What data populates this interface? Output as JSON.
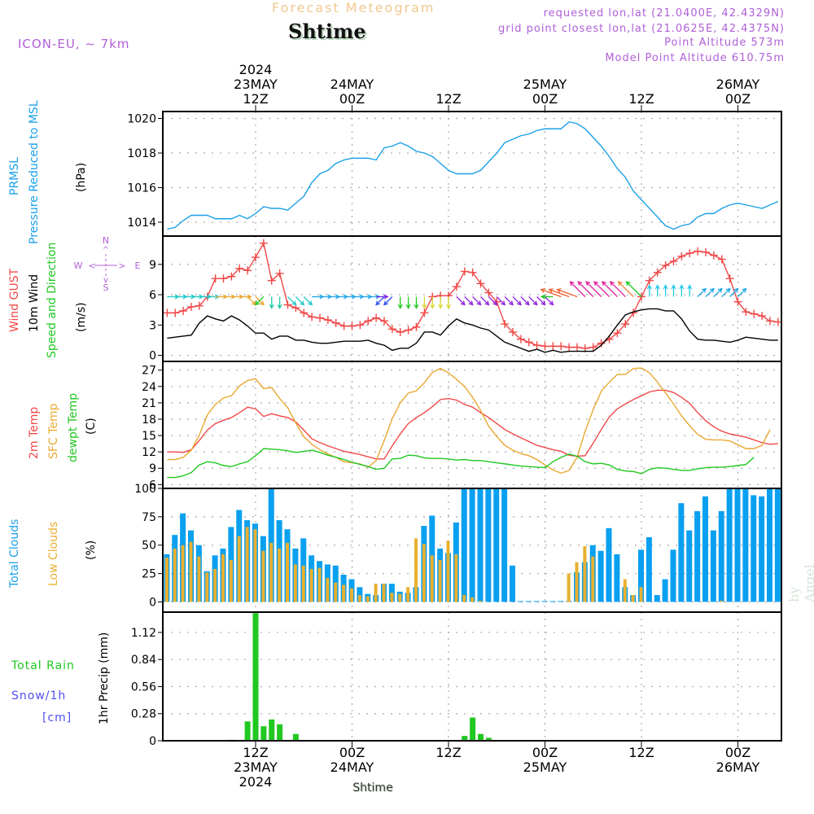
{
  "header": {
    "title": "Forecast Meteogram",
    "station": "Shtime",
    "model": "ICON-EU, ~ 7km",
    "requested": "requested lon,lat (21.0400E, 42.4329N)",
    "gridpoint": "grid point closest lon,lat (21.0625E, 42.4375N)",
    "point_alt": "Point Altitude 573m",
    "model_alt": "Model Point Altitude 610.75m"
  },
  "watermark": "by Angel",
  "footer_station": "Shtime",
  "colors": {
    "pressure": "#1aa0e8",
    "gust": "#f04848",
    "wind10m": "#000000",
    "t2m": "#f04848",
    "tsfc": "#e8a830",
    "dewpt": "#20c820",
    "total_clouds": "#0aa0f0",
    "low_clouds": "#e8b030",
    "rain": "#20c820",
    "snow": "#5050f0",
    "annot": "#b060d8"
  },
  "panel_labels": {
    "pressure": [
      "PRMSL",
      "Pressure Reduced to MSL",
      "(hPa)"
    ],
    "wind": [
      "Wind GUST",
      "10m Wind",
      "Speed and Direction",
      "(m/s)"
    ],
    "compass": {
      "n": "N",
      "s": "S",
      "w": "W",
      "e": "E"
    },
    "temp": [
      "2m Temp",
      "SFC Temp",
      "dewpt Temp",
      "(C)"
    ],
    "clouds": [
      "Total Clouds",
      "Low Clouds",
      "(%)"
    ],
    "precip": [
      "Total  Rain",
      "Snow/1h",
      "[cm]",
      "1hr Precip (mm)"
    ]
  },
  "chart_data": [
    {
      "type": "line",
      "title": "PRMSL Pressure Reduced to MSL",
      "ylabel": "(hPa)",
      "ylim": [
        1013.2,
        1020.4
      ],
      "yticks": [
        1014,
        1016,
        1018,
        1020
      ],
      "x_start": "23MAY 01Z",
      "x_step_hours": 1,
      "series": [
        {
          "name": "PRMSL",
          "values": [
            1013.6,
            1013.7,
            1014.1,
            1014.4,
            1014.4,
            1014.4,
            1014.2,
            1014.2,
            1014.2,
            1014.4,
            1014.2,
            1014.5,
            1014.9,
            1014.8,
            1014.8,
            1014.7,
            1015.1,
            1015.5,
            1016.3,
            1016.8,
            1017.0,
            1017.4,
            1017.6,
            1017.7,
            1017.7,
            1017.7,
            1017.6,
            1018.3,
            1018.4,
            1018.6,
            1018.4,
            1018.1,
            1018.0,
            1017.8,
            1017.4,
            1017.0,
            1016.8,
            1016.8,
            1016.8,
            1017.0,
            1017.5,
            1018.0,
            1018.6,
            1018.8,
            1019.0,
            1019.1,
            1019.3,
            1019.4,
            1019.4,
            1019.4,
            1019.8,
            1019.7,
            1019.4,
            1018.9,
            1018.4,
            1017.8,
            1017.1,
            1016.6,
            1015.8,
            1015.3,
            1014.8,
            1014.3,
            1013.8,
            1013.6,
            1013.8,
            1013.9,
            1014.3,
            1014.5,
            1014.5,
            1014.8,
            1015.0,
            1015.1,
            1015.0,
            1014.9,
            1014.8,
            1015.0,
            1015.2
          ]
        }
      ]
    },
    {
      "type": "line",
      "title": "Wind GUST / 10m Wind Speed and Direction",
      "ylabel": "(m/s)",
      "ylim": [
        -0.6,
        11.8
      ],
      "yticks": [
        0,
        3,
        6,
        9
      ],
      "x_start": "23MAY 01Z",
      "x_step_hours": 1,
      "series": [
        {
          "name": "Wind GUST",
          "marker": "+",
          "values": [
            4.2,
            4.2,
            4.4,
            4.8,
            4.9,
            5.8,
            7.6,
            7.6,
            7.8,
            8.6,
            8.4,
            9.7,
            11.1,
            7.4,
            8.1,
            5.0,
            4.7,
            4.2,
            3.8,
            3.7,
            3.5,
            3.2,
            2.9,
            2.9,
            3.0,
            3.4,
            3.7,
            3.4,
            2.6,
            2.3,
            2.5,
            2.8,
            4.2,
            5.8,
            5.9,
            5.9,
            6.8,
            8.3,
            8.2,
            7.1,
            6.2,
            5.3,
            3.1,
            2.3,
            1.6,
            1.3,
            1.0,
            0.9,
            0.9,
            0.9,
            0.8,
            0.8,
            0.7,
            0.8,
            1.2,
            1.6,
            2.2,
            3.1,
            4.2,
            5.8,
            7.4,
            8.2,
            8.9,
            9.3,
            9.8,
            10.1,
            10.3,
            10.2,
            9.9,
            9.5,
            7.6,
            5.3,
            4.3,
            4.1,
            3.9,
            3.4,
            3.3,
            4.0,
            4.0,
            4.0,
            3.5,
            3.5,
            3.3,
            3.2
          ]
        },
        {
          "name": "10m Wind",
          "values": [
            1.7,
            1.8,
            1.9,
            2.0,
            3.2,
            3.9,
            3.6,
            3.4,
            3.9,
            3.5,
            2.9,
            2.2,
            2.2,
            1.6,
            1.9,
            1.9,
            1.5,
            1.5,
            1.3,
            1.2,
            1.2,
            1.3,
            1.4,
            1.4,
            1.4,
            1.5,
            1.2,
            1.0,
            0.5,
            0.7,
            0.7,
            1.2,
            2.3,
            2.3,
            2.0,
            2.9,
            3.6,
            3.2,
            3.0,
            2.7,
            2.5,
            1.9,
            1.3,
            1.0,
            0.7,
            0.4,
            0.6,
            0.3,
            0.5,
            0.3,
            0.4,
            0.4,
            0.4,
            0.4,
            1.0,
            1.9,
            3.0,
            4.0,
            4.3,
            4.5,
            4.6,
            4.6,
            4.4,
            4.4,
            3.6,
            2.4,
            1.6,
            1.5,
            1.5,
            1.4,
            1.3,
            1.5,
            1.8,
            1.7,
            1.6,
            1.5,
            1.5,
            1.4,
            1.3,
            1.0
          ]
        }
      ],
      "wind_direction_arrows": [
        {
          "bearing_to": "E",
          "color": "#20c8c8",
          "count": 6
        },
        {
          "bearing_to": "E",
          "color": "#e8a830",
          "count": 4
        },
        {
          "bearing_to": "SE",
          "color": "#e8a830",
          "count": 2
        },
        {
          "bearing_to": "SW",
          "color": "#20c820",
          "count": 1
        },
        {
          "bearing_to": "S",
          "color": "#20c8a0",
          "count": 2
        },
        {
          "bearing_to": "SE",
          "color": "#20c8c8",
          "count": 3
        },
        {
          "bearing_to": "E",
          "color": "#20a8e8",
          "count": 8
        },
        {
          "bearing_to": "E",
          "color": "#8020e0",
          "count": 1
        },
        {
          "bearing_to": "SW",
          "color": "#3050e8",
          "count": 2
        },
        {
          "bearing_to": "S",
          "color": "#20c820",
          "count": 3
        },
        {
          "bearing_to": "S",
          "color": "#d8d830",
          "count": 4
        },
        {
          "bearing_to": "SE",
          "color": "#9020e0",
          "count": 12
        },
        {
          "bearing_to": "W",
          "color": "#20c820",
          "count": 1
        },
        {
          "bearing_to": "WNW",
          "color": "#f06030",
          "count": 3
        },
        {
          "bearing_to": "NW",
          "color": "#e020a0",
          "count": 6
        },
        {
          "bearing_to": "NW",
          "color": "#f08030",
          "count": 1
        },
        {
          "bearing_to": "NW",
          "color": "#20c820",
          "count": 1
        },
        {
          "bearing_to": "N",
          "color": "#20c8e8",
          "count": 6
        },
        {
          "bearing_to": "NE",
          "color": "#20a8e8",
          "count": 6
        }
      ]
    },
    {
      "type": "line",
      "title": "2m Temp / SFC Temp / dewpt Temp",
      "ylabel": "(C)",
      "ylim": [
        5.3,
        28.6
      ],
      "yticks": [
        6,
        9,
        12,
        15,
        18,
        21,
        24,
        27
      ],
      "x_start": "23MAY 01Z",
      "x_step_hours": 1,
      "series": [
        {
          "name": "2m Temp",
          "values": [
            12.0,
            12.0,
            11.9,
            12.4,
            14.1,
            16.0,
            17.2,
            17.8,
            18.3,
            19.2,
            20.2,
            19.9,
            18.5,
            19.0,
            18.6,
            18.3,
            17.5,
            16.0,
            14.4,
            13.7,
            13.1,
            12.6,
            12.1,
            11.8,
            11.5,
            11.1,
            10.7,
            10.7,
            13.1,
            15.3,
            17.2,
            18.3,
            19.2,
            20.3,
            21.6,
            21.8,
            21.5,
            20.7,
            20.2,
            19.2,
            18.3,
            17.2,
            16.1,
            15.3,
            14.6,
            13.9,
            13.2,
            12.8,
            12.4,
            12.1,
            11.4,
            11.2,
            11.3,
            13.6,
            16.1,
            18.4,
            19.9,
            20.8,
            21.6,
            22.3,
            23.0,
            23.3,
            23.3,
            22.9,
            22.0,
            20.9,
            19.2,
            17.7,
            16.6,
            15.8,
            15.3,
            15.0,
            14.7,
            14.2,
            13.7,
            13.4,
            13.5,
            15.8
          ]
        },
        {
          "name": "SFC Temp",
          "values": [
            10.6,
            10.6,
            11.0,
            12.3,
            15.1,
            18.8,
            20.7,
            21.9,
            22.3,
            24.1,
            25.1,
            25.4,
            23.6,
            23.8,
            21.8,
            20.1,
            17.3,
            14.8,
            13.4,
            12.4,
            11.6,
            11.0,
            10.2,
            10.0,
            9.8,
            9.2,
            10.4,
            14.1,
            18.1,
            21.0,
            22.8,
            23.2,
            24.7,
            26.6,
            27.3,
            26.5,
            25.3,
            24.0,
            22.0,
            19.6,
            16.7,
            14.8,
            13.2,
            12.3,
            11.7,
            11.3,
            10.6,
            9.6,
            8.7,
            8.1,
            8.6,
            11.0,
            15.8,
            19.8,
            23.1,
            24.8,
            26.2,
            26.2,
            27.3,
            27.4,
            26.5,
            24.8,
            22.8,
            20.8,
            18.6,
            16.8,
            15.2,
            14.3,
            14.2,
            14.2,
            14.0,
            13.3,
            12.6,
            12.6,
            13.2,
            16.1
          ]
        },
        {
          "name": "dewpt Temp",
          "values": [
            7.3,
            7.3,
            7.6,
            8.2,
            9.6,
            10.2,
            10.0,
            9.5,
            9.3,
            9.8,
            10.2,
            11.3,
            12.6,
            12.5,
            12.4,
            12.2,
            11.9,
            12.1,
            12.3,
            11.9,
            11.4,
            11.0,
            10.6,
            10.1,
            9.7,
            9.3,
            8.8,
            9.0,
            10.7,
            10.8,
            11.4,
            11.3,
            10.9,
            10.8,
            10.8,
            10.7,
            10.5,
            10.6,
            10.4,
            10.4,
            10.2,
            10.0,
            9.8,
            9.6,
            9.4,
            9.3,
            9.2,
            9.1,
            10.2,
            11.0,
            11.6,
            11.2,
            10.2,
            9.8,
            9.9,
            9.6,
            8.8,
            8.5,
            8.4,
            8.0,
            8.8,
            9.1,
            9.0,
            8.8,
            8.6,
            8.6,
            8.9,
            9.1,
            9.2,
            9.2,
            9.3,
            9.5,
            9.7,
            11.0
          ]
        }
      ]
    },
    {
      "type": "bar",
      "title": "Total Clouds / Low Clouds",
      "ylabel": "(%)",
      "ylim": [
        -9,
        100
      ],
      "yticks": [
        0,
        25,
        50,
        75,
        100
      ],
      "x_start": "23MAY 01Z",
      "x_step_hours": 1,
      "series": [
        {
          "name": "Total Clouds",
          "values": [
            42,
            59,
            78,
            63,
            50,
            27,
            41,
            47,
            66,
            81,
            72,
            69,
            58,
            100,
            72,
            64,
            47,
            56,
            41,
            36,
            33,
            32,
            24,
            20,
            13,
            7,
            6,
            16,
            16,
            9,
            8,
            13,
            67,
            76,
            47,
            43,
            70,
            100,
            100,
            100,
            100,
            100,
            100,
            32,
            0,
            0,
            0,
            0,
            0,
            0,
            0,
            26,
            35,
            50,
            45,
            65,
            42,
            13,
            6,
            46,
            57,
            6,
            20,
            46,
            87,
            63,
            80,
            93,
            63,
            80,
            100,
            100,
            100,
            94,
            93,
            100,
            100,
            98,
            100
          ]
        },
        {
          "name": "Low Clouds",
          "values": [
            39,
            47,
            50,
            53,
            40,
            26,
            29,
            42,
            37,
            58,
            66,
            64,
            45,
            52,
            47,
            52,
            33,
            32,
            29,
            30,
            21,
            17,
            15,
            12,
            6,
            5,
            16,
            16,
            8,
            7,
            13,
            56,
            51,
            41,
            37,
            54,
            42,
            6,
            4,
            1,
            0,
            0,
            0,
            0,
            0,
            0,
            0,
            0,
            0,
            0,
            25,
            35,
            49,
            40,
            0,
            0,
            0,
            20,
            6,
            13,
            0,
            0,
            0,
            0,
            0,
            0,
            0,
            0,
            0,
            1,
            0,
            0,
            0,
            0,
            0,
            0,
            0,
            0,
            0
          ]
        }
      ]
    },
    {
      "type": "bar",
      "title": "1hr Precip (mm)",
      "ylabel": "1hr Precip (mm)",
      "ylim": [
        0,
        1.33
      ],
      "yticks": [
        0,
        0.28,
        0.56,
        0.84,
        1.12
      ],
      "x_start": "23MAY 01Z",
      "x_step_hours": 1,
      "series": [
        {
          "name": "Total Rain",
          "values": [
            0,
            0,
            0,
            0,
            0,
            0,
            0,
            0,
            0.01,
            0,
            0.2,
            1.32,
            0.15,
            0.22,
            0.17,
            0,
            0.07,
            0,
            0,
            0,
            0,
            0,
            0,
            0,
            0,
            0,
            0,
            0,
            0,
            0,
            0,
            0,
            0,
            0,
            0,
            0,
            0,
            0.05,
            0.24,
            0.07,
            0.03,
            0,
            0,
            0,
            0,
            0,
            0,
            0,
            0,
            0,
            0,
            0,
            0,
            0,
            0,
            0,
            0,
            0,
            0,
            0,
            0,
            0,
            0,
            0,
            0,
            0,
            0,
            0,
            0,
            0,
            0,
            0,
            0,
            0,
            0,
            0,
            0
          ]
        },
        {
          "name": "Snow/1h",
          "values": []
        }
      ]
    }
  ],
  "time_axis": {
    "top_ticks": [
      {
        "lines": [
          "2024",
          "23MAY",
          "12Z"
        ]
      },
      {
        "lines": [
          "24MAY",
          "00Z"
        ]
      },
      {
        "lines": [
          "12Z"
        ]
      },
      {
        "lines": [
          "25MAY",
          "00Z"
        ]
      },
      {
        "lines": [
          "12Z"
        ]
      },
      {
        "lines": [
          "26MAY",
          "00Z"
        ]
      }
    ],
    "bottom_ticks": [
      {
        "lines": [
          "12Z",
          "23MAY",
          "2024"
        ]
      },
      {
        "lines": [
          "00Z",
          "24MAY"
        ]
      },
      {
        "lines": [
          "12Z"
        ]
      },
      {
        "lines": [
          "00Z",
          "25MAY"
        ]
      },
      {
        "lines": [
          "12Z"
        ]
      },
      {
        "lines": [
          "00Z",
          "26MAY"
        ]
      }
    ]
  }
}
